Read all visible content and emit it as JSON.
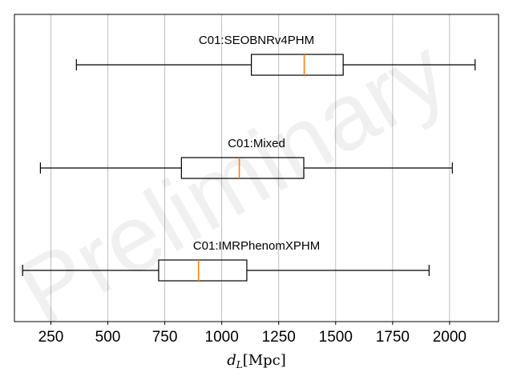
{
  "chart_data": {
    "type": "boxplot",
    "orientation": "horizontal",
    "xlabel": "d_L [Mpc]",
    "xlabel_parts": {
      "symbol": "d",
      "subscript": "L",
      "unit": "[Mpc]"
    },
    "xlim": [
      90,
      2215
    ],
    "xticks": [
      250,
      500,
      750,
      1000,
      1250,
      1500,
      1750,
      2000
    ],
    "grid": {
      "x": true,
      "y": false
    },
    "watermark": "Preliminary",
    "series": [
      {
        "name": "C01:SEOBNRv4PHM",
        "whisker_low": 362,
        "q1": 1130,
        "median": 1362,
        "q3": 1533,
        "whisker_high": 2112
      },
      {
        "name": "C01:Mixed",
        "whisker_low": 204,
        "q1": 823,
        "median": 1077,
        "q3": 1360,
        "whisker_high": 2012
      },
      {
        "name": "C01:IMRPhenomXPHM",
        "whisker_low": 126,
        "q1": 723,
        "median": 898,
        "q3": 1110,
        "whisker_high": 1910
      }
    ],
    "colors": {
      "box": "#000000",
      "median": "#ff7f0e",
      "grid": "#b0b0b0",
      "frame": "#000000"
    }
  }
}
